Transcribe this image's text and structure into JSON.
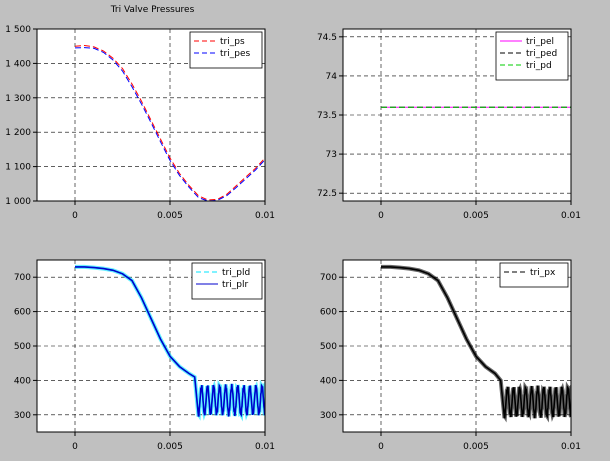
{
  "title": "Tri Valve Pressures",
  "colors": {
    "background": "#c0c0c0",
    "axes_bg": "#ffffff",
    "grid": "#000000"
  },
  "chart_data": [
    {
      "type": "line",
      "title": "Tri Valve Pressures",
      "xlim": [
        -0.002,
        0.01
      ],
      "ylim": [
        1000,
        1500
      ],
      "xticks": [
        0,
        0.005,
        0.01
      ],
      "xtick_labels": [
        "0",
        "0.005",
        "0.01"
      ],
      "yticks": [
        1000,
        1100,
        1200,
        1300,
        1400,
        1500
      ],
      "ytick_labels": [
        "1 000",
        "1 100",
        "1 200",
        "1 300",
        "1 400",
        "1 500"
      ],
      "grid": true,
      "legend_position": "top-right",
      "series": [
        {
          "name": "tri_ps",
          "color": "#ff0000",
          "dash": "dashed",
          "x": [
            0,
            0.0005,
            0.001,
            0.0015,
            0.002,
            0.0025,
            0.003,
            0.0035,
            0.004,
            0.0045,
            0.005,
            0.0055,
            0.006,
            0.0065,
            0.007,
            0.0075,
            0.008,
            0.0085,
            0.009,
            0.0095,
            0.01
          ],
          "y": [
            1450,
            1452,
            1448,
            1436,
            1415,
            1385,
            1340,
            1290,
            1235,
            1180,
            1125,
            1080,
            1045,
            1015,
            1003,
            1005,
            1020,
            1045,
            1070,
            1095,
            1125
          ]
        },
        {
          "name": "tri_pes",
          "color": "#0000ff",
          "dash": "dashed",
          "x": [
            0,
            0.0005,
            0.001,
            0.0015,
            0.002,
            0.0025,
            0.003,
            0.0035,
            0.004,
            0.0045,
            0.005,
            0.0055,
            0.006,
            0.0065,
            0.007,
            0.0075,
            0.008,
            0.0085,
            0.009,
            0.0095,
            0.01
          ],
          "y": [
            1445,
            1446,
            1444,
            1432,
            1410,
            1378,
            1332,
            1282,
            1228,
            1172,
            1118,
            1074,
            1040,
            1010,
            1000,
            1002,
            1016,
            1040,
            1065,
            1090,
            1120
          ]
        }
      ]
    },
    {
      "type": "line",
      "xlim": [
        -0.002,
        0.01
      ],
      "ylim": [
        72.4,
        74.6
      ],
      "xticks": [
        0,
        0.005,
        0.01
      ],
      "xtick_labels": [
        "0",
        "0.005",
        "0.01"
      ],
      "yticks": [
        72.5,
        73,
        73.5,
        74,
        74.5
      ],
      "ytick_labels": [
        "72.5",
        "73",
        "73.5",
        "74",
        "74.5"
      ],
      "grid": true,
      "legend_position": "top-right",
      "series": [
        {
          "name": "tri_pel",
          "color": "#ff00ff",
          "dash": "solid",
          "x": [
            0,
            0.01
          ],
          "y": [
            73.6,
            73.6
          ]
        },
        {
          "name": "tri_ped",
          "color": "#000000",
          "dash": "dashed",
          "x": [
            0,
            0.01
          ],
          "y": [
            73.6,
            73.6
          ]
        },
        {
          "name": "tri_pd",
          "color": "#00cc00",
          "dash": "dashed",
          "x": [
            0,
            0.01
          ],
          "y": [
            73.6,
            73.6
          ]
        }
      ]
    },
    {
      "type": "line",
      "xlim": [
        -0.002,
        0.01
      ],
      "ylim": [
        250,
        750
      ],
      "xticks": [
        0,
        0.005,
        0.01
      ],
      "xtick_labels": [
        "0",
        "0.005",
        "0.01"
      ],
      "yticks": [
        300,
        400,
        500,
        600,
        700
      ],
      "ytick_labels": [
        "300",
        "400",
        "500",
        "600",
        "700"
      ],
      "grid": true,
      "legend_position": "top-right",
      "series": [
        {
          "name": "tri_pld",
          "color": "#00e5ff",
          "dash": "dashed",
          "x": [
            0,
            0.0005,
            0.001,
            0.0015,
            0.002,
            0.0025,
            0.003,
            0.0035,
            0.004,
            0.0045,
            0.005,
            0.0055,
            0.006,
            0.0063
          ],
          "y": [
            730,
            730,
            728,
            725,
            720,
            710,
            690,
            640,
            580,
            520,
            470,
            440,
            420,
            410
          ]
        },
        {
          "name": "tri_plr",
          "color": "#0000cc",
          "dash": "solid",
          "x": [
            0,
            0.0005,
            0.001,
            0.0015,
            0.002,
            0.0025,
            0.003,
            0.0035,
            0.004,
            0.0045,
            0.005,
            0.0055,
            0.006,
            0.0063
          ],
          "y": [
            730,
            730,
            728,
            725,
            720,
            710,
            690,
            640,
            580,
            520,
            470,
            440,
            420,
            410
          ]
        }
      ],
      "oscillation": {
        "x_start": 0.0065,
        "x_end": 0.01,
        "low": 295,
        "high": 390,
        "cycles": 11
      }
    },
    {
      "type": "line",
      "xlim": [
        -0.002,
        0.01
      ],
      "ylim": [
        250,
        750
      ],
      "xticks": [
        0,
        0.005,
        0.01
      ],
      "xtick_labels": [
        "0",
        "0.005",
        "0.01"
      ],
      "yticks": [
        300,
        400,
        500,
        600,
        700
      ],
      "ytick_labels": [
        "300",
        "400",
        "500",
        "600",
        "700"
      ],
      "grid": true,
      "legend_position": "top-right",
      "series": [
        {
          "name": "tri_px",
          "color": "#000000",
          "dash": "dashed",
          "x": [
            0,
            0.0005,
            0.001,
            0.0015,
            0.002,
            0.0025,
            0.003,
            0.0035,
            0.004,
            0.0045,
            0.005,
            0.0055,
            0.006,
            0.0063
          ],
          "y": [
            730,
            730,
            728,
            725,
            720,
            710,
            690,
            640,
            580,
            520,
            470,
            440,
            420,
            400
          ]
        }
      ],
      "oscillation": {
        "x_start": 0.0065,
        "x_end": 0.01,
        "low": 290,
        "high": 385,
        "cycles": 11
      }
    }
  ]
}
